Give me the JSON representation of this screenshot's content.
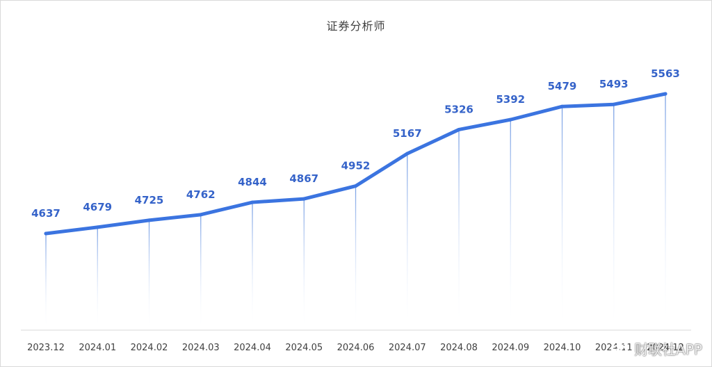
{
  "chart_data": {
    "type": "line",
    "title": "证券分析师",
    "categories": [
      "2023.12",
      "2024.01",
      "2024.02",
      "2024.03",
      "2024.04",
      "2024.05",
      "2024.06",
      "2024.07",
      "2024.08",
      "2024.09",
      "2024.10",
      "2024.11",
      "2024.12"
    ],
    "values": [
      4637,
      4679,
      4725,
      4762,
      4844,
      4867,
      4952,
      5167,
      5326,
      5392,
      5479,
      5493,
      5563
    ],
    "data_labels": [
      "4637",
      "4679",
      "4725",
      "4762",
      "4844",
      "4867",
      "4952",
      "5167",
      "5326",
      "5392",
      "5479",
      "5493",
      "5563"
    ],
    "ylim": [
      4250,
      5700
    ],
    "grid": false,
    "legend": "none",
    "line_color": "#3b74e0",
    "label_color": "#3563c9",
    "drop_line_color": "#7ea6e8"
  },
  "watermark": {
    "text": "财联社APP",
    "icon": "weibo-logo-icon"
  }
}
